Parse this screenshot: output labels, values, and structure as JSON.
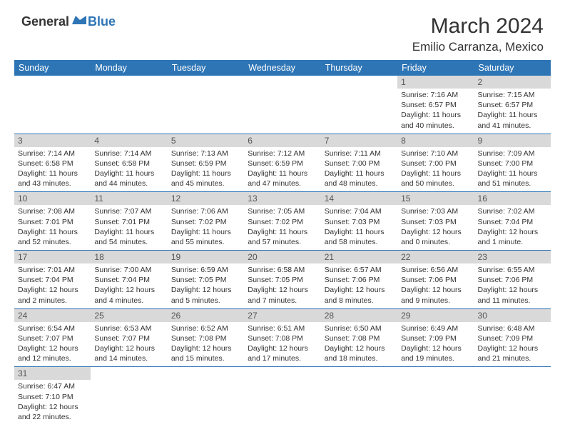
{
  "brand": {
    "part1": "General",
    "part2": "Blue"
  },
  "title": "March 2024",
  "location": "Emilio Carranza, Mexico",
  "colors": {
    "header_bg": "#2e75b6",
    "daynum_bg": "#d9d9d9",
    "border": "#2e75b6",
    "text": "#333333"
  },
  "weekdays": [
    "Sunday",
    "Monday",
    "Tuesday",
    "Wednesday",
    "Thursday",
    "Friday",
    "Saturday"
  ],
  "weeks": [
    [
      null,
      null,
      null,
      null,
      null,
      {
        "n": "1",
        "sr": "Sunrise: 7:16 AM",
        "ss": "Sunset: 6:57 PM",
        "dl1": "Daylight: 11 hours",
        "dl2": "and 40 minutes."
      },
      {
        "n": "2",
        "sr": "Sunrise: 7:15 AM",
        "ss": "Sunset: 6:57 PM",
        "dl1": "Daylight: 11 hours",
        "dl2": "and 41 minutes."
      }
    ],
    [
      {
        "n": "3",
        "sr": "Sunrise: 7:14 AM",
        "ss": "Sunset: 6:58 PM",
        "dl1": "Daylight: 11 hours",
        "dl2": "and 43 minutes."
      },
      {
        "n": "4",
        "sr": "Sunrise: 7:14 AM",
        "ss": "Sunset: 6:58 PM",
        "dl1": "Daylight: 11 hours",
        "dl2": "and 44 minutes."
      },
      {
        "n": "5",
        "sr": "Sunrise: 7:13 AM",
        "ss": "Sunset: 6:59 PM",
        "dl1": "Daylight: 11 hours",
        "dl2": "and 45 minutes."
      },
      {
        "n": "6",
        "sr": "Sunrise: 7:12 AM",
        "ss": "Sunset: 6:59 PM",
        "dl1": "Daylight: 11 hours",
        "dl2": "and 47 minutes."
      },
      {
        "n": "7",
        "sr": "Sunrise: 7:11 AM",
        "ss": "Sunset: 7:00 PM",
        "dl1": "Daylight: 11 hours",
        "dl2": "and 48 minutes."
      },
      {
        "n": "8",
        "sr": "Sunrise: 7:10 AM",
        "ss": "Sunset: 7:00 PM",
        "dl1": "Daylight: 11 hours",
        "dl2": "and 50 minutes."
      },
      {
        "n": "9",
        "sr": "Sunrise: 7:09 AM",
        "ss": "Sunset: 7:00 PM",
        "dl1": "Daylight: 11 hours",
        "dl2": "and 51 minutes."
      }
    ],
    [
      {
        "n": "10",
        "sr": "Sunrise: 7:08 AM",
        "ss": "Sunset: 7:01 PM",
        "dl1": "Daylight: 11 hours",
        "dl2": "and 52 minutes."
      },
      {
        "n": "11",
        "sr": "Sunrise: 7:07 AM",
        "ss": "Sunset: 7:01 PM",
        "dl1": "Daylight: 11 hours",
        "dl2": "and 54 minutes."
      },
      {
        "n": "12",
        "sr": "Sunrise: 7:06 AM",
        "ss": "Sunset: 7:02 PM",
        "dl1": "Daylight: 11 hours",
        "dl2": "and 55 minutes."
      },
      {
        "n": "13",
        "sr": "Sunrise: 7:05 AM",
        "ss": "Sunset: 7:02 PM",
        "dl1": "Daylight: 11 hours",
        "dl2": "and 57 minutes."
      },
      {
        "n": "14",
        "sr": "Sunrise: 7:04 AM",
        "ss": "Sunset: 7:03 PM",
        "dl1": "Daylight: 11 hours",
        "dl2": "and 58 minutes."
      },
      {
        "n": "15",
        "sr": "Sunrise: 7:03 AM",
        "ss": "Sunset: 7:03 PM",
        "dl1": "Daylight: 12 hours",
        "dl2": "and 0 minutes."
      },
      {
        "n": "16",
        "sr": "Sunrise: 7:02 AM",
        "ss": "Sunset: 7:04 PM",
        "dl1": "Daylight: 12 hours",
        "dl2": "and 1 minute."
      }
    ],
    [
      {
        "n": "17",
        "sr": "Sunrise: 7:01 AM",
        "ss": "Sunset: 7:04 PM",
        "dl1": "Daylight: 12 hours",
        "dl2": "and 2 minutes."
      },
      {
        "n": "18",
        "sr": "Sunrise: 7:00 AM",
        "ss": "Sunset: 7:04 PM",
        "dl1": "Daylight: 12 hours",
        "dl2": "and 4 minutes."
      },
      {
        "n": "19",
        "sr": "Sunrise: 6:59 AM",
        "ss": "Sunset: 7:05 PM",
        "dl1": "Daylight: 12 hours",
        "dl2": "and 5 minutes."
      },
      {
        "n": "20",
        "sr": "Sunrise: 6:58 AM",
        "ss": "Sunset: 7:05 PM",
        "dl1": "Daylight: 12 hours",
        "dl2": "and 7 minutes."
      },
      {
        "n": "21",
        "sr": "Sunrise: 6:57 AM",
        "ss": "Sunset: 7:06 PM",
        "dl1": "Daylight: 12 hours",
        "dl2": "and 8 minutes."
      },
      {
        "n": "22",
        "sr": "Sunrise: 6:56 AM",
        "ss": "Sunset: 7:06 PM",
        "dl1": "Daylight: 12 hours",
        "dl2": "and 9 minutes."
      },
      {
        "n": "23",
        "sr": "Sunrise: 6:55 AM",
        "ss": "Sunset: 7:06 PM",
        "dl1": "Daylight: 12 hours",
        "dl2": "and 11 minutes."
      }
    ],
    [
      {
        "n": "24",
        "sr": "Sunrise: 6:54 AM",
        "ss": "Sunset: 7:07 PM",
        "dl1": "Daylight: 12 hours",
        "dl2": "and 12 minutes."
      },
      {
        "n": "25",
        "sr": "Sunrise: 6:53 AM",
        "ss": "Sunset: 7:07 PM",
        "dl1": "Daylight: 12 hours",
        "dl2": "and 14 minutes."
      },
      {
        "n": "26",
        "sr": "Sunrise: 6:52 AM",
        "ss": "Sunset: 7:08 PM",
        "dl1": "Daylight: 12 hours",
        "dl2": "and 15 minutes."
      },
      {
        "n": "27",
        "sr": "Sunrise: 6:51 AM",
        "ss": "Sunset: 7:08 PM",
        "dl1": "Daylight: 12 hours",
        "dl2": "and 17 minutes."
      },
      {
        "n": "28",
        "sr": "Sunrise: 6:50 AM",
        "ss": "Sunset: 7:08 PM",
        "dl1": "Daylight: 12 hours",
        "dl2": "and 18 minutes."
      },
      {
        "n": "29",
        "sr": "Sunrise: 6:49 AM",
        "ss": "Sunset: 7:09 PM",
        "dl1": "Daylight: 12 hours",
        "dl2": "and 19 minutes."
      },
      {
        "n": "30",
        "sr": "Sunrise: 6:48 AM",
        "ss": "Sunset: 7:09 PM",
        "dl1": "Daylight: 12 hours",
        "dl2": "and 21 minutes."
      }
    ],
    [
      {
        "n": "31",
        "sr": "Sunrise: 6:47 AM",
        "ss": "Sunset: 7:10 PM",
        "dl1": "Daylight: 12 hours",
        "dl2": "and 22 minutes."
      },
      null,
      null,
      null,
      null,
      null,
      null
    ]
  ]
}
